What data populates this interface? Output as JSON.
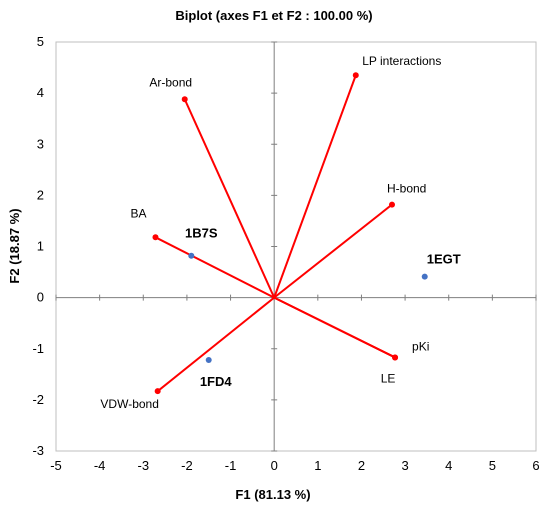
{
  "chart_data": {
    "type": "scatter",
    "title": "Biplot (axes F1 et F2 : 100.00 %)",
    "xlabel": "F1 (81.13 %)",
    "ylabel": "F2 (18.87 %)",
    "xlim": [
      -5,
      6
    ],
    "ylim": [
      -3,
      5
    ],
    "xticks": [
      -5,
      -4,
      -3,
      -2,
      -1,
      0,
      1,
      2,
      3,
      4,
      5,
      6
    ],
    "yticks": [
      -3,
      -2,
      -1,
      0,
      1,
      2,
      3,
      4,
      5
    ],
    "grid": false,
    "variables": [
      {
        "label": "Ar-bond",
        "x": -2.05,
        "y": 3.88
      },
      {
        "label": "LP interactions",
        "x": 1.87,
        "y": 4.35
      },
      {
        "label": "H-bond",
        "x": 2.7,
        "y": 1.82
      },
      {
        "label": "BA",
        "x": -2.72,
        "y": 1.18
      },
      {
        "label": "pKi",
        "x": 2.77,
        "y": -1.17
      },
      {
        "label": "LE",
        "x": 2.77,
        "y": -1.17
      },
      {
        "label": "VDW-bond",
        "x": -2.67,
        "y": -1.83
      }
    ],
    "observations": [
      {
        "label": "1B7S",
        "x": -1.9,
        "y": 0.82
      },
      {
        "label": "1EGT",
        "x": 3.45,
        "y": 0.41
      },
      {
        "label": "1FD4",
        "x": -1.5,
        "y": -1.22
      }
    ],
    "colors": {
      "vector": "#ff0000",
      "variable_point": "#ff0000",
      "observation_point": "#4472c4",
      "axes": "#7f7f7f"
    }
  }
}
